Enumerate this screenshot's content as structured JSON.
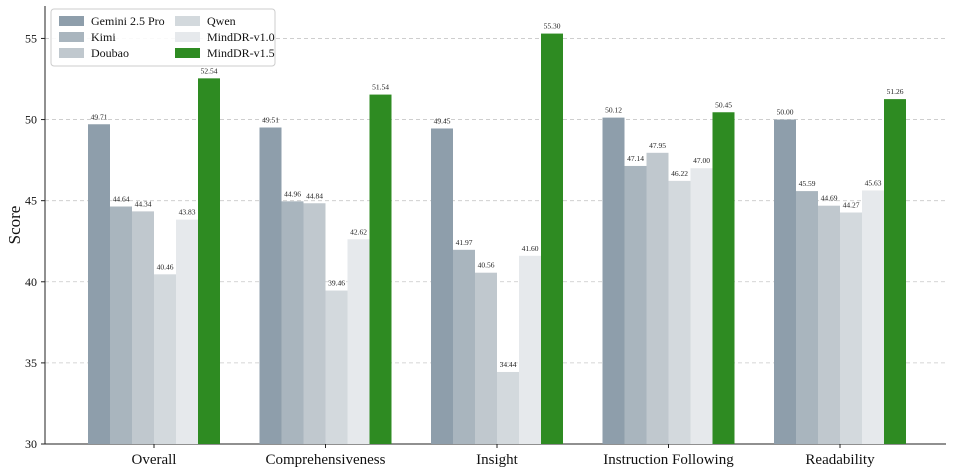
{
  "chart_data": {
    "type": "bar",
    "title": "",
    "xlabel": "",
    "ylabel": "Score",
    "ylim": [
      30,
      57
    ],
    "yticks": [
      30,
      35,
      40,
      45,
      50,
      55
    ],
    "grid": "horizontal-dashed",
    "legend_position": "top-left",
    "categories": [
      "Overall",
      "Comprehensiveness",
      "Insight",
      "Instruction Following",
      "Readability"
    ],
    "series": [
      {
        "name": "Gemini 2.5 Pro",
        "color": "#8e9eab",
        "values": [
          49.71,
          49.51,
          49.45,
          50.12,
          50.0
        ],
        "labels": [
          "49.71",
          "49.51",
          "49.45",
          "50.12",
          "50.00"
        ]
      },
      {
        "name": "Kimi",
        "color": "#a9b5be",
        "values": [
          44.64,
          44.96,
          41.97,
          47.14,
          45.59
        ],
        "labels": [
          "44.64",
          "44.96",
          "41.97",
          "47.14",
          "45.59"
        ]
      },
      {
        "name": "Doubao",
        "color": "#c0c8ce",
        "values": [
          44.34,
          44.84,
          40.56,
          47.95,
          44.69
        ],
        "labels": [
          "44.34",
          "44.84",
          "40.56",
          "47.95",
          "44.69"
        ]
      },
      {
        "name": "Qwen",
        "color": "#d3d9dd",
        "values": [
          40.46,
          39.46,
          34.44,
          46.22,
          44.27
        ],
        "labels": [
          "40.46",
          "39.46",
          "34.44",
          "46.22",
          "44.27"
        ]
      },
      {
        "name": "MindDR-v1.0",
        "color": "#e6e9ec",
        "values": [
          43.83,
          42.62,
          41.6,
          47.0,
          45.63
        ],
        "labels": [
          "43.83",
          "42.62",
          "41.60",
          "47.00",
          "45.63"
        ]
      },
      {
        "name": "MindDR-v1.5",
        "color": "#2e8b22",
        "values": [
          52.54,
          51.54,
          55.3,
          50.45,
          51.26
        ],
        "labels": [
          "52.54",
          "51.54",
          "55.30",
          "50.45",
          "51.26"
        ]
      }
    ]
  }
}
